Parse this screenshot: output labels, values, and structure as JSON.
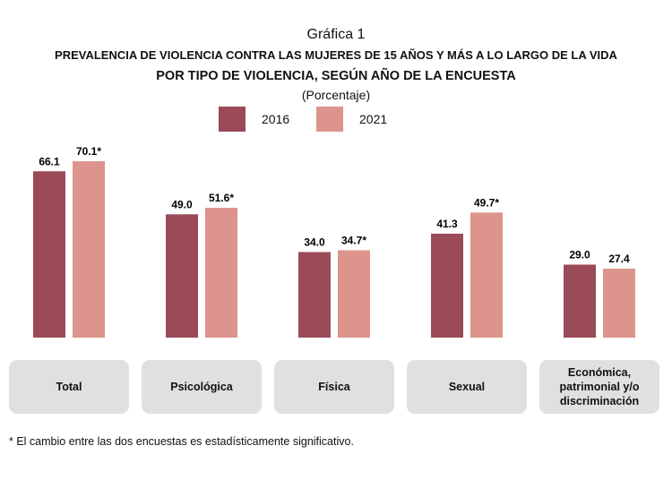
{
  "chart_data": {
    "type": "bar",
    "supertitle": "Gráfica 1",
    "title": "PREVALENCIA DE VIOLENCIA CONTRA LAS MUJERES DE 15 AÑOS Y MÁS A LO LARGO DE LA VIDA",
    "subtitle": "POR TIPO DE VIOLENCIA, SEGÚN AÑO DE LA ENCUESTA",
    "unit": "(Porcentaje)",
    "categories": [
      "Total",
      "Psicológica",
      "Física",
      "Sexual",
      "Económica,\npatrimonial y/o\ndiscriminación"
    ],
    "series": [
      {
        "name": "2016",
        "color": "#9b4a58",
        "values": [
          66.1,
          49.0,
          34.0,
          41.3,
          29.0
        ],
        "labels": [
          "66.1",
          "49.0",
          "34.0",
          "41.3",
          "29.0"
        ]
      },
      {
        "name": "2021",
        "color": "#dc948c",
        "values": [
          70.1,
          51.6,
          34.7,
          49.7,
          27.4
        ],
        "labels": [
          "70.1*",
          "51.6*",
          "34.7*",
          "49.7*",
          "27.4"
        ]
      }
    ],
    "legend": "top-center",
    "grid": false,
    "footnote": "* El cambio entre las dos encuestas es estadísticamente significativo."
  }
}
